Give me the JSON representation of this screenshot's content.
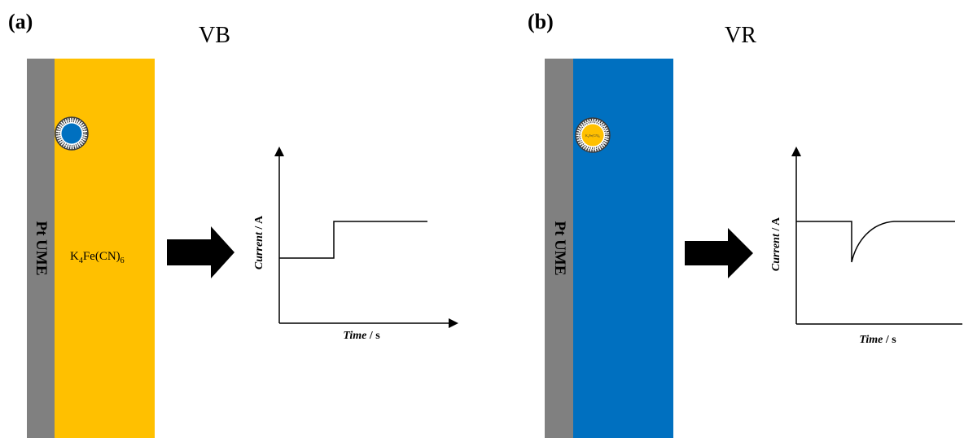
{
  "panels": [
    {
      "id": "a",
      "tag": "(a)",
      "title": "VB",
      "electrode_label": "Pt UME",
      "solution_species": {
        "base": "K",
        "sub1": "4",
        "mid": "Fe(CN)",
        "sub2": "6"
      },
      "axis": {
        "y_label_italic": "Current",
        "y_label_unit": " / A",
        "x_label_italic": "Time",
        "x_label_unit": " / s"
      }
    },
    {
      "id": "b",
      "tag": "(b)",
      "title": "VR",
      "electrode_label": "Pt UME",
      "vesicle_label": "K₄Fe(CN)₆",
      "axis": {
        "y_label_italic": "Current",
        "y_label_unit": " / A",
        "x_label_italic": "Time",
        "x_label_unit": " / s"
      }
    }
  ],
  "colors": {
    "electrode": "#808080",
    "solution_yellow": "#FFC000",
    "solution_blue": "#0070C0",
    "vesicle_shell": "#3a3a3a",
    "arrow": "#000000"
  },
  "icons": [
    "vesicle-icon",
    "right-arrow-icon"
  ]
}
